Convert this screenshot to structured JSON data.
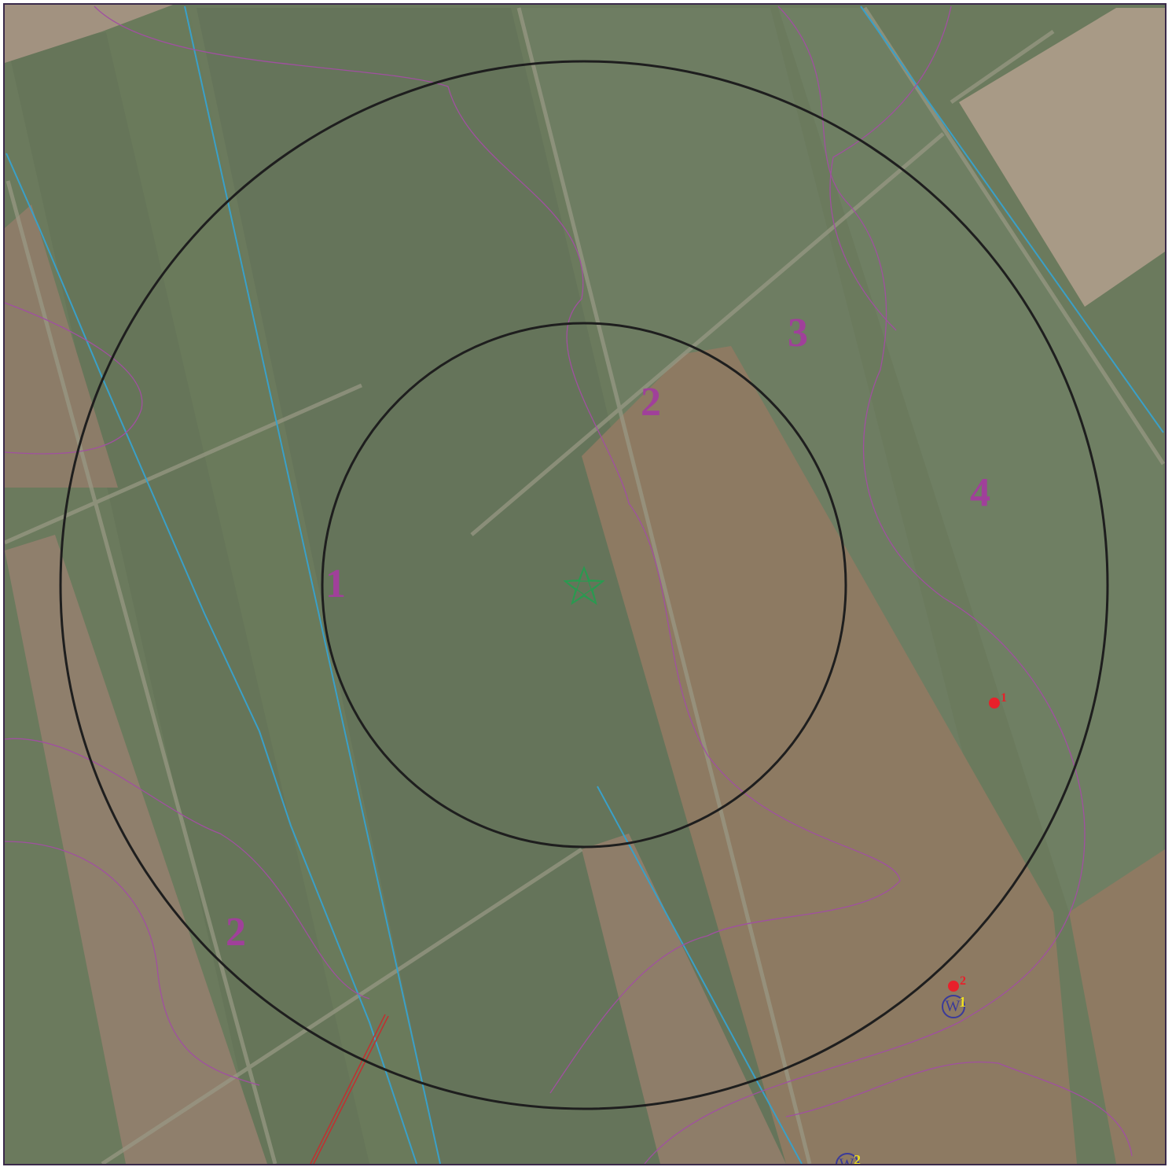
{
  "map": {
    "zone_labels": [
      "1",
      "2",
      "3",
      "4",
      "2"
    ],
    "points": [
      "1",
      "2"
    ],
    "wells": [
      {
        "symbol": "W",
        "label": "1"
      },
      {
        "symbol": "W",
        "label": "2"
      }
    ]
  }
}
